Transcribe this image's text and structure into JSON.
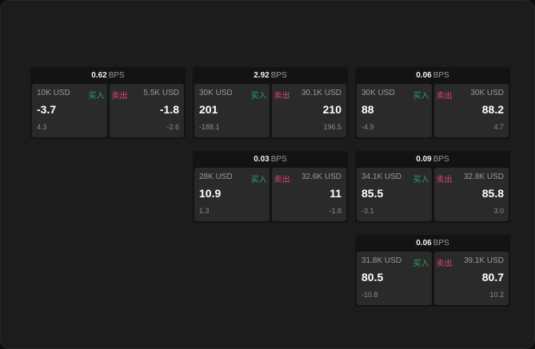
{
  "unit": "BPS",
  "buy_label": "买入",
  "sell_label": "卖出",
  "colors": {
    "buy": "#27a560",
    "sell": "#e0456c"
  },
  "cards": [
    {
      "spread": "0.62",
      "bid": {
        "amount": "10K USD",
        "price": "-3.7",
        "change": "4.3"
      },
      "ask": {
        "amount": "5.5K USD",
        "price": "-1.8",
        "change": "-2.6"
      }
    },
    {
      "spread": "2.92",
      "bid": {
        "amount": "30K USD",
        "price": "201",
        "change": "-188.1"
      },
      "ask": {
        "amount": "30.1K USD",
        "price": "210",
        "change": "196.5"
      }
    },
    {
      "spread": "0.06",
      "bid": {
        "amount": "30K USD",
        "price": "88",
        "change": "-4.9"
      },
      "ask": {
        "amount": "30K USD",
        "price": "88.2",
        "change": "4.7"
      }
    },
    {
      "spread": "0.03",
      "bid": {
        "amount": "28K USD",
        "price": "10.9",
        "change": "1.3"
      },
      "ask": {
        "amount": "32.6K USD",
        "price": "11",
        "change": "-1.8"
      }
    },
    {
      "spread": "0.09",
      "bid": {
        "amount": "34.1K USD",
        "price": "85.5",
        "change": "-3.1"
      },
      "ask": {
        "amount": "32.8K USD",
        "price": "85.8",
        "change": "3.0"
      }
    },
    {
      "spread": "0.06",
      "bid": {
        "amount": "31.8K USD",
        "price": "80.5",
        "change": "-10.8"
      },
      "ask": {
        "amount": "39.1K USD",
        "price": "80.7",
        "change": "10.2"
      }
    }
  ]
}
